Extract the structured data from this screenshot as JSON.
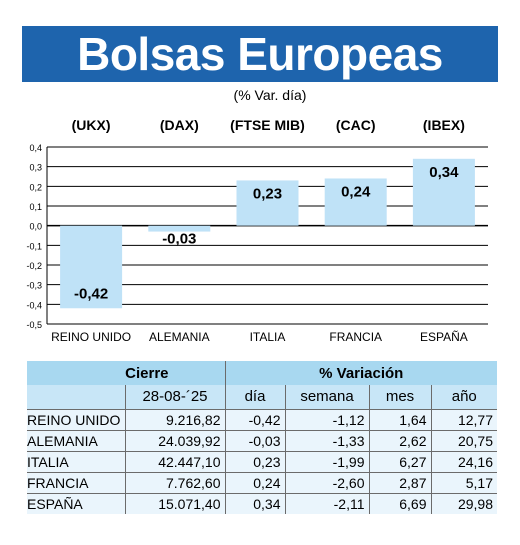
{
  "title": "Bolsas Europeas",
  "subtitle": "(% Var. día)",
  "chart_data": {
    "type": "bar",
    "categories": [
      "REINO UNIDO",
      "ALEMANIA",
      "ITALIA",
      "FRANCIA",
      "ESPAÑA"
    ],
    "index_labels": [
      "(UKX)",
      "(DAX)",
      "(FTSE MIB)",
      "(CAC)",
      "(IBEX)"
    ],
    "values": [
      -0.42,
      -0.03,
      0.23,
      0.24,
      0.34
    ],
    "value_labels": [
      "-0,42",
      "-0,03",
      "0,23",
      "0,24",
      "0,34"
    ],
    "ylim": [
      -0.5,
      0.4
    ],
    "y_ticks": [
      "0,4",
      "0,3",
      "0,2",
      "0,1",
      "0,0",
      "-0,1",
      "-0,2",
      "-0,3",
      "-0,4",
      "-0,5"
    ],
    "y_tick_values": [
      0.4,
      0.3,
      0.2,
      0.1,
      0.0,
      -0.1,
      -0.2,
      -0.3,
      -0.4,
      -0.5
    ],
    "grid": true,
    "bar_color": "#bfe2f7"
  },
  "table": {
    "header_cierre": "Cierre",
    "header_variacion": "% Variación",
    "date": "28-08-´25",
    "columns": [
      "día",
      "semana",
      "mes",
      "año"
    ],
    "rows": [
      {
        "country": "REINO UNIDO",
        "close": "9.216,82",
        "dia": "-0,42",
        "semana": "-1,12",
        "mes": "1,64",
        "ano": "12,77"
      },
      {
        "country": "ALEMANIA",
        "close": "24.039,92",
        "dia": "-0,03",
        "semana": "-1,33",
        "mes": "2,62",
        "ano": "20,75"
      },
      {
        "country": "ITALIA",
        "close": "42.447,10",
        "dia": "0,23",
        "semana": "-1,99",
        "mes": "6,27",
        "ano": "24,16"
      },
      {
        "country": "FRANCIA",
        "close": "7.762,60",
        "dia": "0,24",
        "semana": "-2,60",
        "mes": "2,87",
        "ano": "5,17"
      },
      {
        "country": "ESPAÑA",
        "close": "15.071,40",
        "dia": "0,34",
        "semana": "-2,11",
        "mes": "6,69",
        "ano": "29,98"
      }
    ]
  }
}
